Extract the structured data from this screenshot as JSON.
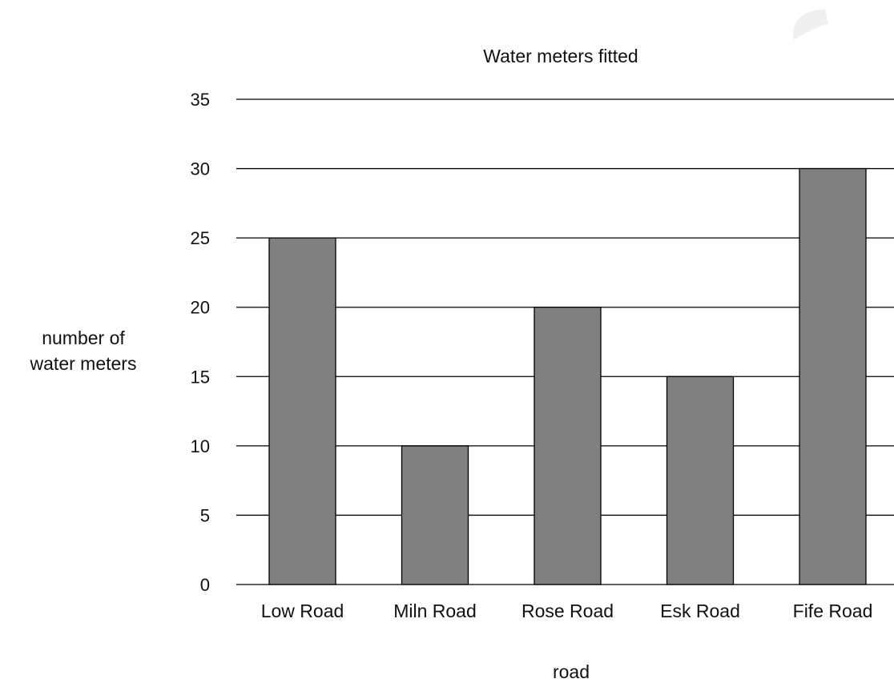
{
  "chart_data": {
    "type": "bar",
    "title": "Water meters fitted",
    "xlabel": "road",
    "ylabel": [
      "number of",
      "water meters"
    ],
    "categories": [
      "Low Road",
      "Miln Road",
      "Rose Road",
      "Esk Road",
      "Fife Road"
    ],
    "values": [
      25,
      10,
      20,
      15,
      30
    ],
    "ylim": [
      0,
      35
    ],
    "yticks": [
      0,
      5,
      10,
      15,
      20,
      25,
      30,
      35
    ],
    "grid": true,
    "legend": "none",
    "bar_color": "#808080",
    "bar_stroke": "#000000",
    "grid_color": "#000000"
  }
}
